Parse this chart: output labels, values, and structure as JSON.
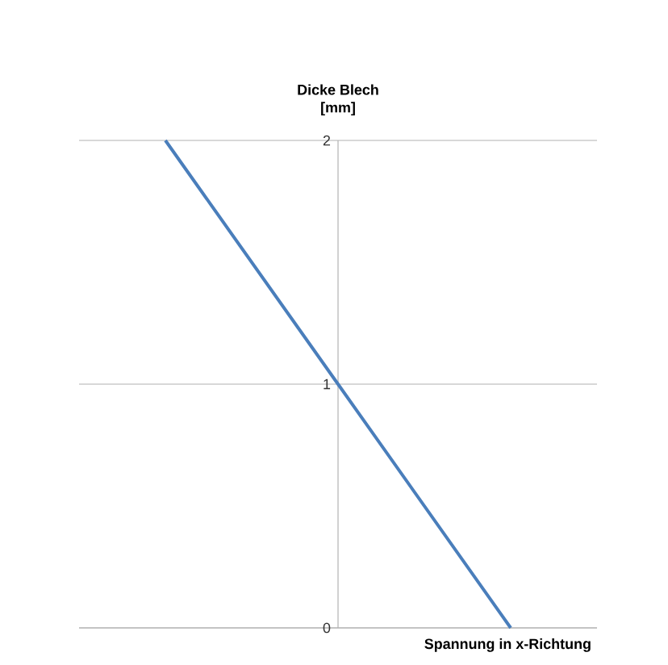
{
  "chart_data": {
    "type": "line",
    "xlabel": "Spannung in x-Richtung",
    "ylabel": "Dicke Blech\n[mm]",
    "categories": [
      null,
      null,
      null
    ],
    "values": [
      2,
      1,
      0
    ],
    "color": "#4a7ebb",
    "ylim": [
      0,
      2
    ],
    "yticks": [
      0,
      1,
      2
    ],
    "tick_labels": "y",
    "grid": "y",
    "marker": "none",
    "line_style": "solid"
  }
}
